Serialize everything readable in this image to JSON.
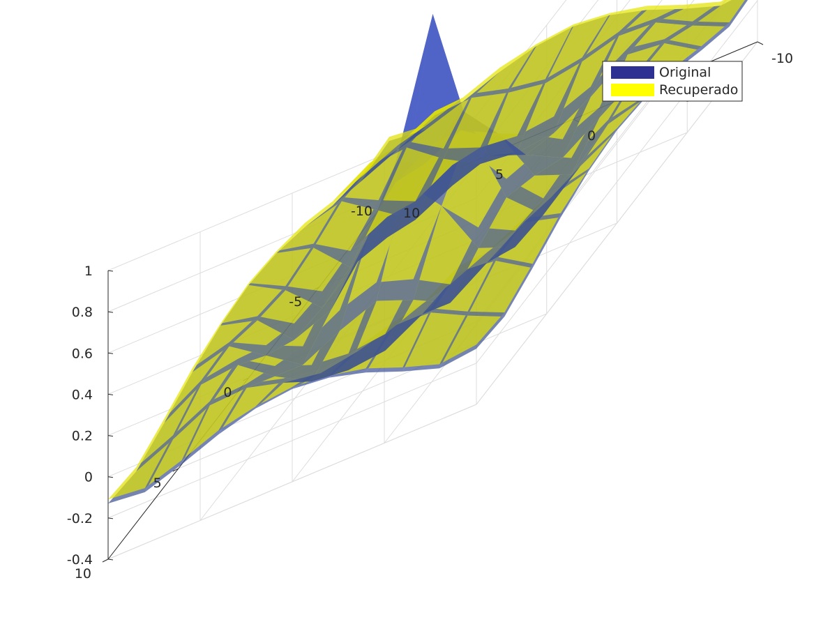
{
  "chart_data": {
    "type": "surface",
    "title": "",
    "xlabel": "",
    "ylabel": "",
    "zlabel": "",
    "xlim": [
      -10,
      10
    ],
    "ylim": [
      -10,
      10
    ],
    "zlim": [
      -0.4,
      1
    ],
    "x_ticks": [
      "-10",
      "-5",
      "0",
      "5",
      "10"
    ],
    "y_ticks": [
      "-10",
      "-5",
      "0",
      "5",
      "10"
    ],
    "z_ticks": [
      "-0.4",
      "-0.2",
      "0",
      "0.2",
      "0.4",
      "0.6",
      "0.8",
      "1"
    ],
    "grid": true,
    "legend_position": "top-right",
    "surface_grid_x": [
      -10,
      -8,
      -6,
      -4,
      -2,
      0,
      2,
      4,
      6,
      8,
      10
    ],
    "surface_grid_y": [
      -10,
      -8,
      -6,
      -4,
      -2,
      0,
      2,
      4,
      6,
      8,
      10
    ],
    "series": [
      {
        "name": "Original",
        "color": "#2e3192",
        "values": [
          [
            -0.13,
            -0.15,
            -0.09,
            -0.02,
            0.03,
            0.05,
            0.03,
            -0.02,
            -0.09,
            -0.15,
            -0.13
          ],
          [
            -0.15,
            -0.07,
            0.02,
            0.03,
            -0.02,
            -0.05,
            -0.02,
            0.03,
            0.02,
            -0.07,
            -0.15
          ],
          [
            -0.09,
            0.02,
            0.04,
            -0.09,
            -0.19,
            -0.21,
            -0.19,
            -0.09,
            0.04,
            0.02,
            -0.09
          ],
          [
            -0.02,
            0.03,
            -0.09,
            -0.21,
            -0.12,
            -0.05,
            -0.12,
            -0.21,
            -0.09,
            0.03,
            -0.02
          ],
          [
            0.03,
            -0.02,
            -0.19,
            -0.12,
            0.16,
            0.35,
            0.16,
            -0.12,
            -0.19,
            -0.02,
            0.03
          ],
          [
            0.05,
            -0.05,
            -0.21,
            -0.05,
            0.35,
            0.99,
            0.35,
            -0.05,
            -0.21,
            -0.05,
            0.05
          ],
          [
            0.03,
            -0.02,
            -0.19,
            -0.12,
            0.16,
            0.35,
            0.16,
            -0.12,
            -0.19,
            -0.02,
            0.03
          ],
          [
            -0.02,
            0.03,
            -0.09,
            -0.21,
            -0.12,
            -0.05,
            -0.12,
            -0.21,
            -0.09,
            0.03,
            -0.02
          ],
          [
            -0.09,
            0.02,
            0.04,
            -0.09,
            -0.19,
            -0.21,
            -0.19,
            -0.09,
            0.04,
            0.02,
            -0.09
          ],
          [
            -0.15,
            -0.07,
            0.02,
            0.03,
            -0.02,
            -0.05,
            -0.02,
            0.03,
            0.02,
            -0.07,
            -0.15
          ],
          [
            -0.13,
            -0.15,
            -0.09,
            -0.02,
            0.03,
            0.05,
            0.03,
            -0.02,
            -0.09,
            -0.15,
            -0.13
          ]
        ]
      },
      {
        "name": "Recuperado",
        "color": "#ffff00",
        "values": [
          [
            -0.11,
            -0.13,
            -0.07,
            0.0,
            0.04,
            0.06,
            0.04,
            0.0,
            -0.07,
            -0.13,
            -0.11
          ],
          [
            -0.13,
            -0.05,
            0.04,
            0.05,
            0.0,
            -0.03,
            0.0,
            0.05,
            0.04,
            -0.05,
            -0.13
          ],
          [
            -0.07,
            0.04,
            0.07,
            -0.04,
            -0.11,
            -0.13,
            -0.11,
            -0.04,
            0.07,
            0.04,
            -0.07
          ],
          [
            0.0,
            0.05,
            -0.04,
            -0.12,
            -0.02,
            0.04,
            -0.02,
            -0.12,
            -0.04,
            0.05,
            0.0
          ],
          [
            0.04,
            0.0,
            -0.11,
            -0.02,
            0.16,
            0.25,
            0.16,
            -0.02,
            -0.11,
            0.0,
            0.04
          ],
          [
            0.06,
            -0.03,
            -0.13,
            0.04,
            0.25,
            0.36,
            0.25,
            0.04,
            -0.13,
            -0.03,
            0.06
          ],
          [
            0.04,
            0.0,
            -0.11,
            -0.02,
            0.16,
            0.25,
            0.16,
            -0.02,
            -0.11,
            0.0,
            0.04
          ],
          [
            0.0,
            0.05,
            -0.04,
            -0.12,
            -0.02,
            0.04,
            -0.02,
            -0.12,
            -0.04,
            0.05,
            0.0
          ],
          [
            -0.07,
            0.04,
            0.07,
            -0.04,
            -0.11,
            -0.13,
            -0.11,
            -0.04,
            0.07,
            0.04,
            -0.07
          ],
          [
            -0.13,
            -0.05,
            0.04,
            0.05,
            0.0,
            -0.03,
            0.0,
            0.05,
            0.04,
            -0.05,
            -0.13
          ],
          [
            -0.11,
            -0.13,
            -0.07,
            0.0,
            0.04,
            0.06,
            0.04,
            0.0,
            -0.07,
            -0.13,
            -0.11
          ]
        ]
      }
    ]
  }
}
